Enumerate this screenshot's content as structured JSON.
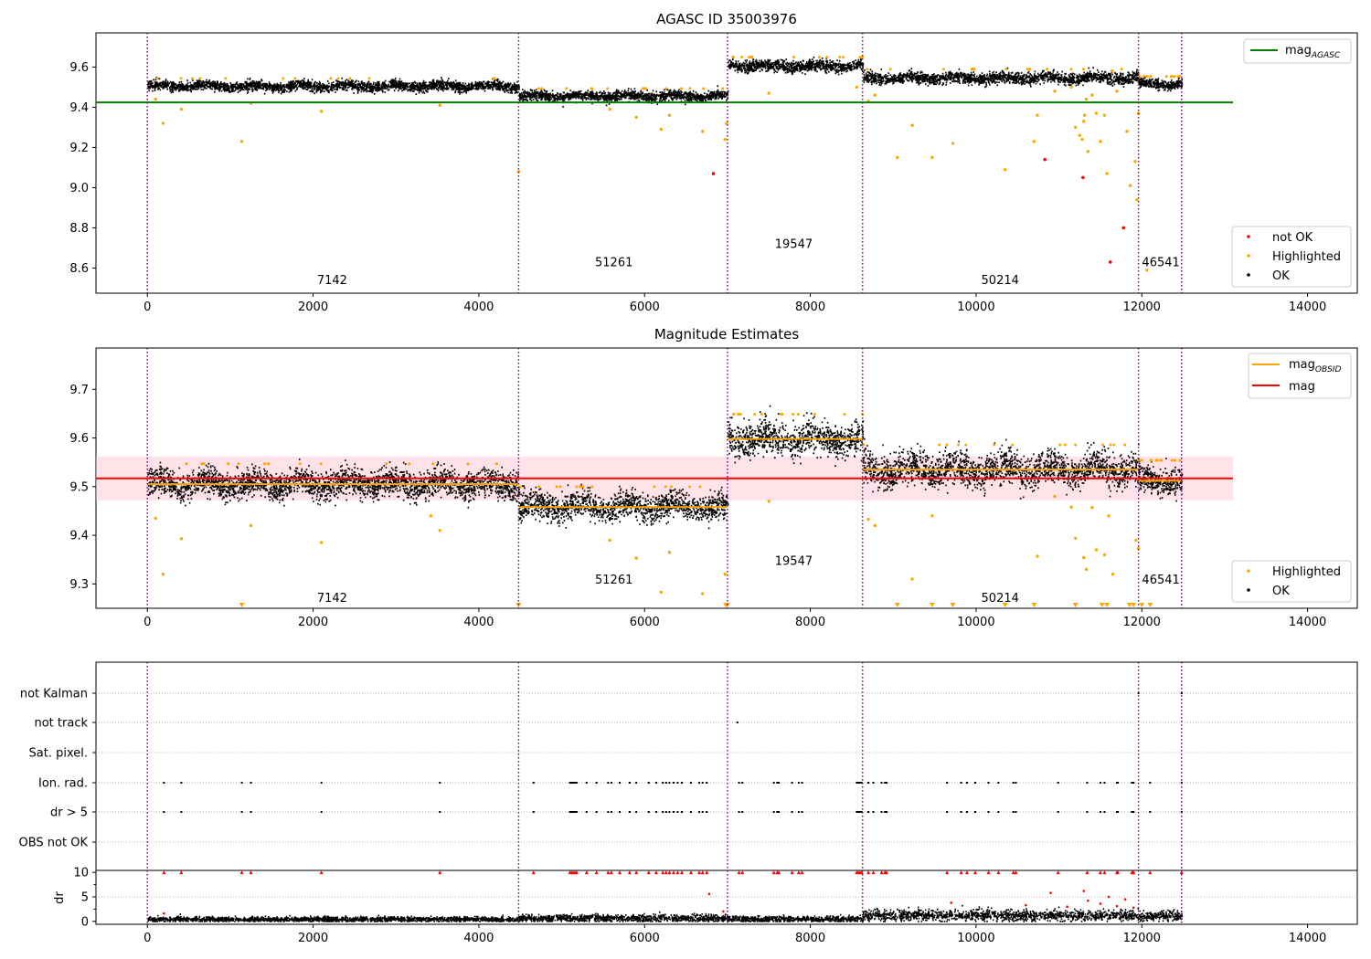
{
  "chart_data": [
    {
      "id": "top",
      "type": "scatter",
      "title": "AGASC ID 35003976",
      "xlim": [
        -620,
        14600
      ],
      "ylim": [
        8.475,
        9.77
      ],
      "xticks": [
        0,
        2000,
        4000,
        6000,
        8000,
        10000,
        12000,
        14000
      ],
      "xtick_labels": [
        "0",
        "2000",
        "4000",
        "6000",
        "8000",
        "10000",
        "12000",
        "14000"
      ],
      "yticks": [
        8.6,
        8.8,
        9.0,
        9.2,
        9.4,
        9.6
      ],
      "ytick_labels": [
        "8.6",
        "8.8",
        "9.0",
        "9.2",
        "9.4",
        "9.6"
      ],
      "reference_line": {
        "name": "mag_AGASC",
        "label_main": "mag",
        "label_sub": "AGASC",
        "y": 9.424,
        "x_range": [
          -620,
          13100
        ],
        "color": "#008000"
      },
      "obs_boundaries": [
        0,
        4480,
        7000,
        8630,
        11960,
        12480
      ],
      "obs_labels": [
        {
          "text": "7142",
          "x": 2230,
          "y": 8.52
        },
        {
          "text": "51261",
          "x": 5630,
          "y": 8.61
        },
        {
          "text": "19547",
          "x": 7800,
          "y": 8.7
        },
        {
          "text": "50214",
          "x": 10290,
          "y": 8.52
        },
        {
          "text": "46541",
          "x": 12230,
          "y": 8.61
        }
      ],
      "segments": [
        {
          "x": [
            0,
            4480
          ],
          "mean": 9.505,
          "spread": 0.012
        },
        {
          "x": [
            4480,
            7000
          ],
          "mean": 9.455,
          "spread": 0.012
        },
        {
          "x": [
            7000,
            8630
          ],
          "mean": 9.605,
          "spread": 0.014
        },
        {
          "x": [
            8630,
            11960
          ],
          "mean": 9.545,
          "spread": 0.014
        },
        {
          "x": [
            11960,
            12480
          ],
          "mean": 9.515,
          "spread": 0.012
        }
      ],
      "highlighted_points": [
        [
          100,
          9.44
        ],
        [
          190,
          9.32
        ],
        [
          410,
          9.39
        ],
        [
          1140,
          9.23
        ],
        [
          1250,
          9.42
        ],
        [
          2100,
          9.38
        ],
        [
          3530,
          9.41
        ],
        [
          4480,
          9.08
        ],
        [
          5580,
          9.39
        ],
        [
          5900,
          9.35
        ],
        [
          6200,
          9.29
        ],
        [
          6300,
          9.36
        ],
        [
          6700,
          9.28
        ],
        [
          6970,
          9.24
        ],
        [
          6990,
          9.32
        ],
        [
          7500,
          9.47
        ],
        [
          8560,
          9.5
        ],
        [
          8700,
          9.43
        ],
        [
          8780,
          9.46
        ],
        [
          9050,
          9.15
        ],
        [
          9230,
          9.31
        ],
        [
          9470,
          9.15
        ],
        [
          9720,
          9.22
        ],
        [
          10350,
          9.09
        ],
        [
          10700,
          9.23
        ],
        [
          10740,
          9.36
        ],
        [
          10950,
          9.48
        ],
        [
          11150,
          9.5
        ],
        [
          11200,
          9.3
        ],
        [
          11250,
          9.26
        ],
        [
          11280,
          9.24
        ],
        [
          11300,
          9.33
        ],
        [
          11310,
          9.36
        ],
        [
          11330,
          9.44
        ],
        [
          11350,
          9.18
        ],
        [
          11400,
          9.46
        ],
        [
          11450,
          9.37
        ],
        [
          11500,
          9.23
        ],
        [
          11550,
          9.36
        ],
        [
          11580,
          9.07
        ],
        [
          11640,
          9.58
        ],
        [
          11700,
          9.48
        ],
        [
          11820,
          9.28
        ],
        [
          11860,
          9.01
        ],
        [
          11920,
          9.13
        ],
        [
          11940,
          8.94
        ],
        [
          11960,
          9.37
        ],
        [
          12060,
          8.59
        ]
      ],
      "not_ok_points": [
        [
          6830,
          9.07
        ],
        [
          10830,
          9.14
        ],
        [
          11290,
          9.05
        ],
        [
          11620,
          8.63
        ],
        [
          11780,
          8.8
        ]
      ],
      "legend": {
        "items": [
          {
            "label": "not OK",
            "color": "#ff0000"
          },
          {
            "label": "Highlighted",
            "color": "#ffa500"
          },
          {
            "label": "OK",
            "color": "#000000"
          }
        ],
        "position": "lower right"
      }
    },
    {
      "id": "middle",
      "type": "scatter",
      "title": "Magnitude Estimates",
      "xlim": [
        -620,
        14600
      ],
      "ylim": [
        9.25,
        9.785
      ],
      "xticks": [
        0,
        2000,
        4000,
        6000,
        8000,
        10000,
        12000,
        14000
      ],
      "xtick_labels": [
        "0",
        "2000",
        "4000",
        "6000",
        "8000",
        "10000",
        "12000",
        "14000"
      ],
      "yticks": [
        9.3,
        9.4,
        9.5,
        9.6,
        9.7
      ],
      "ytick_labels": [
        "9.3",
        "9.4",
        "9.5",
        "9.6",
        "9.7"
      ],
      "mag_line": {
        "label": "mag",
        "y": 9.517,
        "band": [
          9.472,
          9.562
        ],
        "x_range": [
          -620,
          13100
        ],
        "color": "#ff0000"
      },
      "obs_mag_label_main": "mag",
      "obs_mag_label_sub": "OBSID",
      "obs_boundaries": [
        0,
        4480,
        7000,
        8630,
        11960,
        12480
      ],
      "obs_labels": [
        {
          "text": "7142",
          "x": 2230,
          "y": 9.263
        },
        {
          "text": "51261",
          "x": 5630,
          "y": 9.301
        },
        {
          "text": "19547",
          "x": 7800,
          "y": 9.339
        },
        {
          "text": "50214",
          "x": 10290,
          "y": 9.263
        },
        {
          "text": "46541",
          "x": 12230,
          "y": 9.301
        }
      ],
      "segments": [
        {
          "x": [
            0,
            4480
          ],
          "mean": 9.505,
          "spread": 0.014
        },
        {
          "x": [
            4480,
            7000
          ],
          "mean": 9.458,
          "spread": 0.014
        },
        {
          "x": [
            7000,
            8630
          ],
          "mean": 9.598,
          "spread": 0.017
        },
        {
          "x": [
            8630,
            11960
          ],
          "mean": 9.535,
          "spread": 0.017
        },
        {
          "x": [
            11960,
            12480
          ],
          "mean": 9.512,
          "spread": 0.014
        }
      ],
      "highlighted_points": [
        [
          100,
          9.435
        ],
        [
          190,
          9.32
        ],
        [
          410,
          9.393
        ],
        [
          1250,
          9.42
        ],
        [
          2100,
          9.385
        ],
        [
          3530,
          9.41
        ],
        [
          3420,
          9.44
        ],
        [
          5580,
          9.39
        ],
        [
          5900,
          9.353
        ],
        [
          6300,
          9.365
        ],
        [
          6200,
          9.283
        ],
        [
          6700,
          9.28
        ],
        [
          6970,
          9.32
        ],
        [
          7500,
          9.47
        ],
        [
          8700,
          9.433
        ],
        [
          8780,
          9.42
        ],
        [
          9230,
          9.31
        ],
        [
          9470,
          9.44
        ],
        [
          10740,
          9.357
        ],
        [
          10950,
          9.48
        ],
        [
          11150,
          9.458
        ],
        [
          11200,
          9.394
        ],
        [
          11300,
          9.354
        ],
        [
          11330,
          9.33
        ],
        [
          11400,
          9.457
        ],
        [
          11450,
          9.37
        ],
        [
          11550,
          9.36
        ],
        [
          11600,
          9.44
        ],
        [
          11650,
          9.32
        ],
        [
          11960,
          9.373
        ],
        [
          11930,
          9.39
        ]
      ],
      "low_markers_x": [
        1140,
        4480,
        6980,
        7000,
        9050,
        9470,
        9720,
        10350,
        10700,
        11200,
        11520,
        11580,
        11850,
        11900,
        12000,
        12100
      ],
      "legend": {
        "items": [
          {
            "label": "Highlighted",
            "color": "#ffa500"
          },
          {
            "label": "OK",
            "color": "#000000"
          }
        ],
        "position": "lower right"
      }
    },
    {
      "id": "flags",
      "type": "scatter",
      "xlim": [
        -620,
        14600
      ],
      "categories": [
        "not Kalman",
        "not track",
        "Sat. pixel.",
        "Ion. rad.",
        "dr > 5",
        "OBS not OK"
      ],
      "obs_boundaries": [
        0,
        4480,
        7000,
        8630,
        11960,
        12480
      ],
      "not_track_x": [
        7120
      ],
      "flag_x": [
        200,
        410,
        1140,
        1250,
        2100,
        3530,
        4660,
        5100,
        5120,
        5140,
        5160,
        5180,
        5300,
        5420,
        5560,
        5600,
        5700,
        5820,
        5900,
        6050,
        6140,
        6220,
        6260,
        6300,
        6350,
        6400,
        6450,
        6560,
        6660,
        6700,
        6750,
        7140,
        7180,
        7560,
        7600,
        7620,
        7780,
        7860,
        7900,
        8560,
        8580,
        8600,
        8620,
        8700,
        8760,
        8860,
        8900,
        8920,
        9650,
        9820,
        9890,
        9990,
        10150,
        10270,
        10450,
        10480,
        10990,
        11340,
        11500,
        11550,
        11700,
        11710,
        11880,
        11890,
        11900,
        12100,
        12480
      ],
      "edge_x": [
        11960,
        12480
      ]
    },
    {
      "id": "dr",
      "type": "scatter",
      "ylabel": "dr",
      "xlim": [
        -620,
        14600
      ],
      "ylim": [
        -0.6,
        10.4
      ],
      "xticks": [
        0,
        2000,
        4000,
        6000,
        8000,
        10000,
        12000,
        14000
      ],
      "xtick_labels": [
        "0",
        "2000",
        "4000",
        "6000",
        "8000",
        "10000",
        "12000",
        "14000"
      ],
      "yticks": [
        0,
        5,
        10
      ],
      "ytick_labels": [
        "0",
        "5",
        "10"
      ],
      "obs_boundaries": [
        0,
        4480,
        7000,
        8630,
        11960,
        12480
      ],
      "segments": [
        {
          "x": [
            0,
            4480
          ],
          "mean": 0.4,
          "spread": 0.25
        },
        {
          "x": [
            4480,
            7000
          ],
          "mean": 0.6,
          "spread": 0.35
        },
        {
          "x": [
            7000,
            8630
          ],
          "mean": 0.45,
          "spread": 0.3
        },
        {
          "x": [
            8630,
            11960
          ],
          "mean": 1.2,
          "spread": 0.55
        },
        {
          "x": [
            11960,
            12480
          ],
          "mean": 1.0,
          "spread": 0.5
        }
      ],
      "flag_x_at_10": [
        200,
        410,
        1140,
        1250,
        2100,
        3530,
        4660,
        5100,
        5120,
        5140,
        5160,
        5180,
        5300,
        5420,
        5560,
        5600,
        5700,
        5820,
        5900,
        6050,
        6140,
        6220,
        6260,
        6300,
        6350,
        6400,
        6450,
        6560,
        6660,
        6700,
        6750,
        7140,
        7180,
        7560,
        7600,
        7620,
        7780,
        7860,
        7900,
        8560,
        8580,
        8600,
        8620,
        8700,
        8760,
        8860,
        8900,
        8920,
        9650,
        9820,
        9890,
        9990,
        10150,
        10270,
        10450,
        10480,
        10990,
        11340,
        11500,
        11550,
        11700,
        11710,
        11880,
        11890,
        11900,
        12100,
        12480
      ],
      "extra_red_points": [
        [
          6780,
          5.6
        ],
        [
          11300,
          6.2
        ],
        [
          11350,
          4.2
        ],
        [
          11500,
          3.6
        ],
        [
          11600,
          5.0
        ],
        [
          11700,
          3.1
        ],
        [
          11800,
          4.5
        ],
        [
          11900,
          2.8
        ],
        [
          10900,
          5.8
        ],
        [
          9700,
          3.8
        ],
        [
          10600,
          3.3
        ],
        [
          11100,
          3.0
        ],
        [
          200,
          1.6
        ],
        [
          6950,
          2.0
        ]
      ]
    }
  ]
}
